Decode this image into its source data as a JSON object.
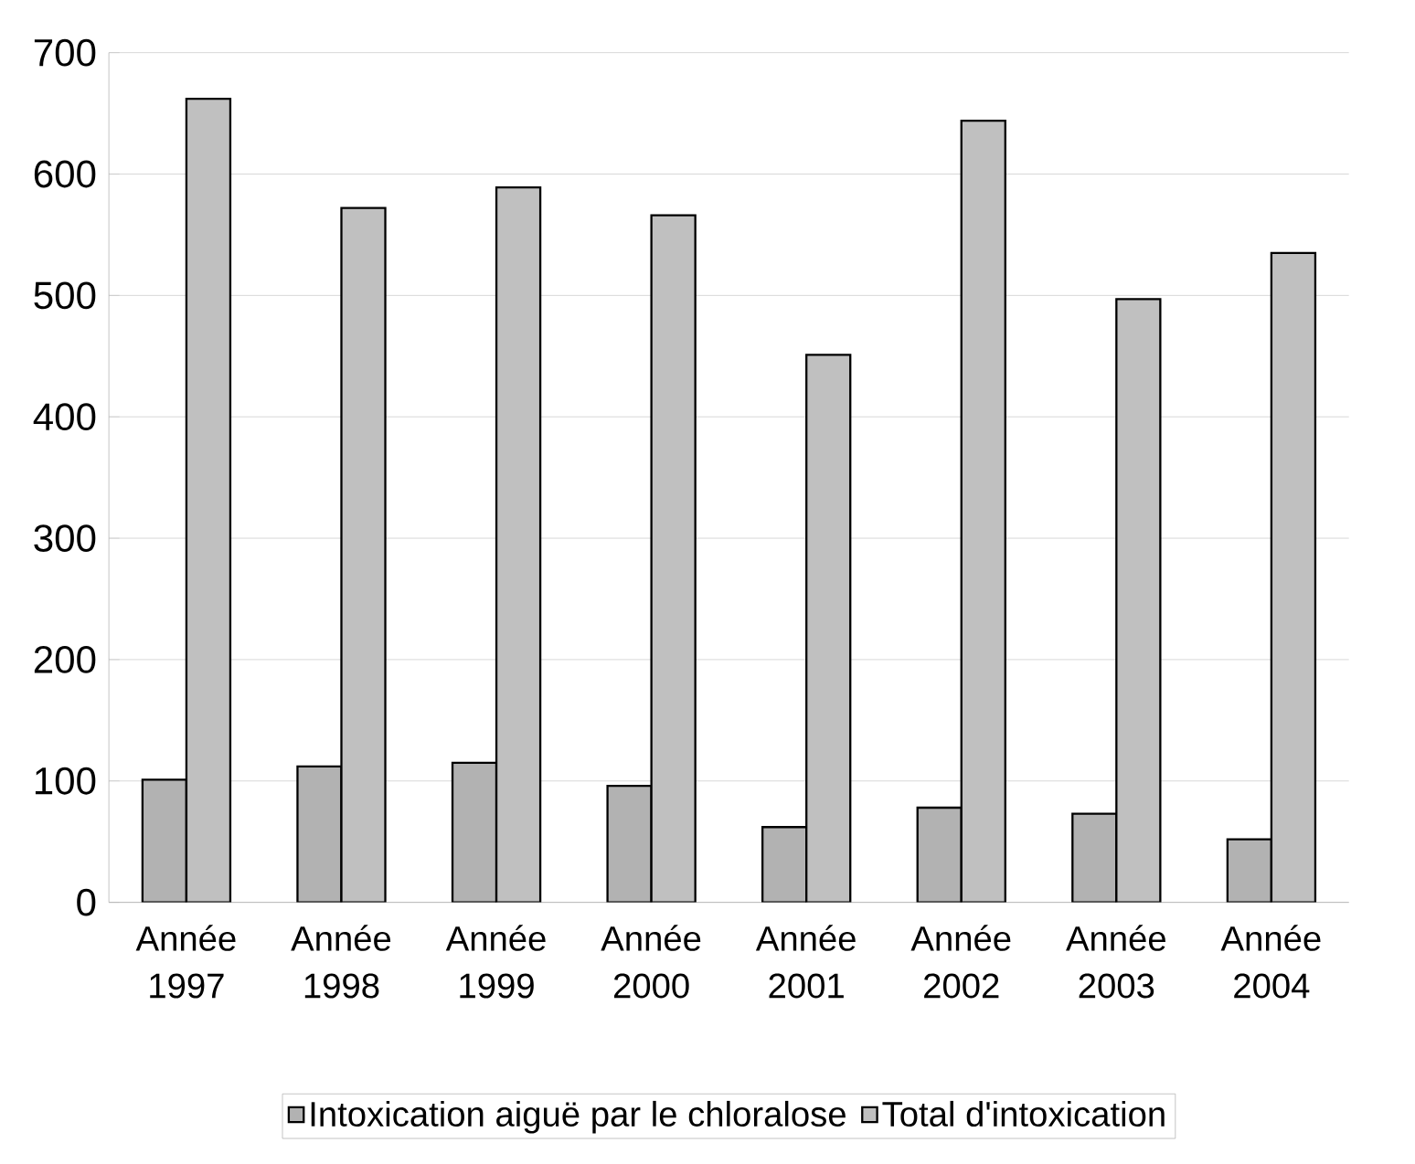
{
  "chart_data": {
    "type": "bar",
    "categories": [
      "Année 1997",
      "Année 1998",
      "Année 1999",
      "Année 2000",
      "Année 2001",
      "Année 2002",
      "Année 2003",
      "Année 2004"
    ],
    "series": [
      {
        "name": "Intoxication aiguë par le chloralose",
        "color": "#b2b2b2",
        "values": [
          101,
          112,
          115,
          96,
          62,
          78,
          73,
          52
        ]
      },
      {
        "name": "Total d'intoxication",
        "color": "#c0c0c0",
        "values": [
          662,
          572,
          589,
          566,
          451,
          644,
          497,
          535
        ]
      }
    ],
    "ylim": [
      0,
      700
    ],
    "yticks": [
      0,
      100,
      200,
      300,
      400,
      500,
      600,
      700
    ],
    "grid": "y",
    "legend": "bottom"
  }
}
